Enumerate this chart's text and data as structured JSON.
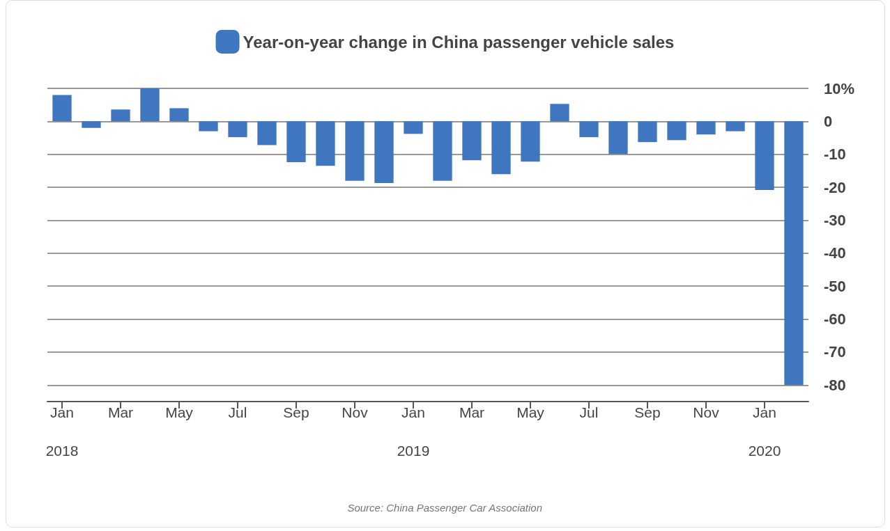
{
  "chart_data": {
    "type": "bar",
    "categories": [
      "Jan\n2018",
      null,
      "Mar",
      null,
      "May",
      null,
      "Jul",
      null,
      "Sep",
      null,
      "Nov",
      null,
      "Jan\n2019",
      null,
      "Mar",
      null,
      "May",
      null,
      "Jul",
      null,
      "Sep",
      null,
      "Nov",
      null,
      "Jan\n2020",
      null
    ],
    "series": [
      {
        "name": "Year-on-year change in China passenger vehicle sales",
        "color": "#3f76bf",
        "values": [
          8,
          -2,
          3.6,
          10,
          4,
          -3,
          -4.8,
          -7.2,
          -12.4,
          -13.5,
          -18,
          -18.7,
          -3.8,
          -18,
          -11.8,
          -16,
          -12.2,
          5.3,
          -4.8,
          -9.9,
          -6.3,
          -5.7,
          -4,
          -3,
          -20.8,
          -80
        ]
      }
    ],
    "ylim": [
      -85,
      10
    ],
    "yticks": [
      {
        "value": 10,
        "label": "10%"
      },
      0,
      -10,
      -20,
      -30,
      -40,
      -50,
      -60,
      -70,
      -80
    ],
    "grid": "y",
    "legend": "top",
    "annotations": [
      "Source: China Passenger Car Association"
    ]
  }
}
